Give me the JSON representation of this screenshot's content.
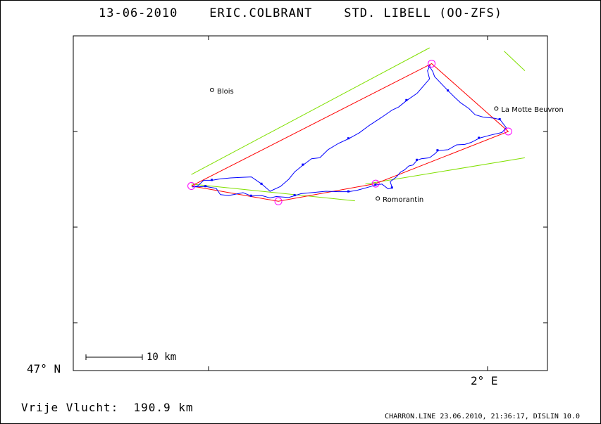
{
  "title": "13-06-2010    ERIC.COLBRANT    STD. LIBELL (OO-ZFS)",
  "distance_text": "Vrije Vlucht:  190.9 km",
  "footer": "CHARRON.LINE 23.06.2010, 21:36:17, DISLIN 10.0",
  "colors": {
    "task_route": "#ff0000",
    "flight_track": "#0000ff",
    "sector_lines": "#80e000",
    "turnpoint_circle": "#ff00ff",
    "frame": "#000000"
  },
  "chart_data": {
    "type": "line",
    "title": "13-06-2010    ERIC.COLBRANT    STD. LIBELL (OO-ZFS)",
    "axes": {
      "latitude_label": "47° N",
      "longitude_label": "2° E",
      "grid": false
    },
    "scale_bar_label": "10 km",
    "towns": [
      {
        "name": "Blois",
        "lon": 1.335,
        "lat": 47.587
      },
      {
        "name": "La Motte Beuvron",
        "lon": 2.021,
        "lat": 47.548
      },
      {
        "name": "Romorantin",
        "lon": 1.735,
        "lat": 47.36
      }
    ],
    "task_route": [
      {
        "lon": 1.285,
        "lat": 47.386
      },
      {
        "lon": 1.495,
        "lat": 47.354
      },
      {
        "lon": 1.73,
        "lat": 47.391
      },
      {
        "lon": 2.05,
        "lat": 47.5
      },
      {
        "lon": 1.865,
        "lat": 47.642
      },
      {
        "lon": 1.285,
        "lat": 47.386
      }
    ],
    "turnpoints": [
      {
        "lon": 1.285,
        "lat": 47.386
      },
      {
        "lon": 1.495,
        "lat": 47.354
      },
      {
        "lon": 1.73,
        "lat": 47.391
      },
      {
        "lon": 2.05,
        "lat": 47.5
      },
      {
        "lon": 1.865,
        "lat": 47.642
      }
    ],
    "sector_lines": [
      [
        {
          "lon": 1.285,
          "lat": 47.39
        },
        {
          "lon": 1.68,
          "lat": 47.355
        }
      ],
      [
        {
          "lon": 1.705,
          "lat": 47.39
        },
        {
          "lon": 2.09,
          "lat": 47.445
        }
      ],
      [
        {
          "lon": 1.285,
          "lat": 47.41
        },
        {
          "lon": 1.86,
          "lat": 47.675
        }
      ],
      [
        {
          "lon": 2.04,
          "lat": 47.668
        },
        {
          "lon": 2.09,
          "lat": 47.627
        }
      ]
    ],
    "flight_track": [
      {
        "lon": 1.287,
        "lat": 47.384
      },
      {
        "lon": 1.32,
        "lat": 47.385
      },
      {
        "lon": 1.345,
        "lat": 47.381
      },
      {
        "lon": 1.355,
        "lat": 47.368
      },
      {
        "lon": 1.375,
        "lat": 47.366
      },
      {
        "lon": 1.41,
        "lat": 47.372
      },
      {
        "lon": 1.43,
        "lat": 47.365
      },
      {
        "lon": 1.455,
        "lat": 47.366
      },
      {
        "lon": 1.475,
        "lat": 47.361
      },
      {
        "lon": 1.49,
        "lat": 47.364
      },
      {
        "lon": 1.52,
        "lat": 47.362
      },
      {
        "lon": 1.535,
        "lat": 47.366
      },
      {
        "lon": 1.55,
        "lat": 47.37
      },
      {
        "lon": 1.575,
        "lat": 47.372
      },
      {
        "lon": 1.61,
        "lat": 47.375
      },
      {
        "lon": 1.64,
        "lat": 47.374
      },
      {
        "lon": 1.665,
        "lat": 47.374
      },
      {
        "lon": 1.685,
        "lat": 47.377
      },
      {
        "lon": 1.71,
        "lat": 47.383
      },
      {
        "lon": 1.73,
        "lat": 47.388
      },
      {
        "lon": 1.745,
        "lat": 47.39
      },
      {
        "lon": 1.76,
        "lat": 47.38
      },
      {
        "lon": 1.77,
        "lat": 47.382
      },
      {
        "lon": 1.765,
        "lat": 47.395
      },
      {
        "lon": 1.78,
        "lat": 47.405
      },
      {
        "lon": 1.79,
        "lat": 47.415
      },
      {
        "lon": 1.8,
        "lat": 47.42
      },
      {
        "lon": 1.81,
        "lat": 47.428
      },
      {
        "lon": 1.82,
        "lat": 47.43
      },
      {
        "lon": 1.83,
        "lat": 47.44
      },
      {
        "lon": 1.84,
        "lat": 47.443
      },
      {
        "lon": 1.86,
        "lat": 47.445
      },
      {
        "lon": 1.875,
        "lat": 47.455
      },
      {
        "lon": 1.88,
        "lat": 47.46
      },
      {
        "lon": 1.905,
        "lat": 47.462
      },
      {
        "lon": 1.925,
        "lat": 47.472
      },
      {
        "lon": 1.945,
        "lat": 47.473
      },
      {
        "lon": 1.96,
        "lat": 47.477
      },
      {
        "lon": 1.98,
        "lat": 47.486
      },
      {
        "lon": 2.005,
        "lat": 47.492
      },
      {
        "lon": 2.035,
        "lat": 47.498
      },
      {
        "lon": 2.045,
        "lat": 47.508
      },
      {
        "lon": 2.03,
        "lat": 47.525
      },
      {
        "lon": 2.015,
        "lat": 47.528
      },
      {
        "lon": 1.99,
        "lat": 47.53
      },
      {
        "lon": 1.97,
        "lat": 47.535
      },
      {
        "lon": 1.955,
        "lat": 47.548
      },
      {
        "lon": 1.935,
        "lat": 47.56
      },
      {
        "lon": 1.92,
        "lat": 47.572
      },
      {
        "lon": 1.905,
        "lat": 47.585
      },
      {
        "lon": 1.885,
        "lat": 47.603
      },
      {
        "lon": 1.872,
        "lat": 47.615
      },
      {
        "lon": 1.868,
        "lat": 47.625
      },
      {
        "lon": 1.86,
        "lat": 47.636
      },
      {
        "lon": 1.855,
        "lat": 47.627
      },
      {
        "lon": 1.86,
        "lat": 47.61
      },
      {
        "lon": 1.845,
        "lat": 47.595
      },
      {
        "lon": 1.83,
        "lat": 47.58
      },
      {
        "lon": 1.805,
        "lat": 47.565
      },
      {
        "lon": 1.785,
        "lat": 47.551
      },
      {
        "lon": 1.77,
        "lat": 47.545
      },
      {
        "lon": 1.745,
        "lat": 47.53
      },
      {
        "lon": 1.715,
        "lat": 47.513
      },
      {
        "lon": 1.69,
        "lat": 47.497
      },
      {
        "lon": 1.665,
        "lat": 47.485
      },
      {
        "lon": 1.64,
        "lat": 47.475
      },
      {
        "lon": 1.615,
        "lat": 47.462
      },
      {
        "lon": 1.595,
        "lat": 47.445
      },
      {
        "lon": 1.575,
        "lat": 47.443
      },
      {
        "lon": 1.555,
        "lat": 47.43
      },
      {
        "lon": 1.535,
        "lat": 47.416
      },
      {
        "lon": 1.52,
        "lat": 47.4
      },
      {
        "lon": 1.5,
        "lat": 47.385
      },
      {
        "lon": 1.475,
        "lat": 47.375
      },
      {
        "lon": 1.455,
        "lat": 47.39
      },
      {
        "lon": 1.43,
        "lat": 47.405
      },
      {
        "lon": 1.405,
        "lat": 47.404
      },
      {
        "lon": 1.38,
        "lat": 47.403
      },
      {
        "lon": 1.355,
        "lat": 47.401
      },
      {
        "lon": 1.335,
        "lat": 47.398
      },
      {
        "lon": 1.315,
        "lat": 47.398
      },
      {
        "lon": 1.3,
        "lat": 47.386
      },
      {
        "lon": 1.287,
        "lat": 47.384
      }
    ],
    "track_markers": [
      {
        "lon": 1.32,
        "lat": 47.385
      },
      {
        "lon": 1.43,
        "lat": 47.365
      },
      {
        "lon": 1.535,
        "lat": 47.366
      },
      {
        "lon": 1.665,
        "lat": 47.374
      },
      {
        "lon": 1.73,
        "lat": 47.388
      },
      {
        "lon": 1.77,
        "lat": 47.382
      },
      {
        "lon": 1.83,
        "lat": 47.44
      },
      {
        "lon": 1.88,
        "lat": 47.46
      },
      {
        "lon": 1.98,
        "lat": 47.486
      },
      {
        "lon": 2.03,
        "lat": 47.525
      },
      {
        "lon": 1.905,
        "lat": 47.585
      },
      {
        "lon": 1.86,
        "lat": 47.636
      },
      {
        "lon": 1.805,
        "lat": 47.565
      },
      {
        "lon": 1.665,
        "lat": 47.485
      },
      {
        "lon": 1.555,
        "lat": 47.43
      },
      {
        "lon": 1.455,
        "lat": 47.39
      },
      {
        "lon": 1.335,
        "lat": 47.398
      }
    ]
  }
}
